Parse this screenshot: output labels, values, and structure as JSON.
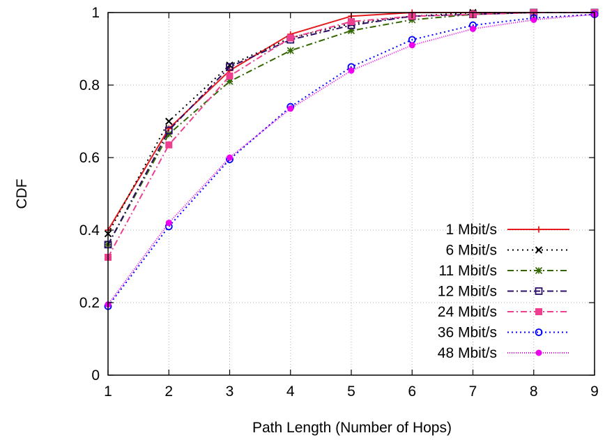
{
  "chart_data": {
    "type": "line",
    "title": "",
    "xlabel": "Path Length (Number of Hops)",
    "ylabel": "CDF",
    "xlim": [
      1,
      9
    ],
    "ylim": [
      0,
      1
    ],
    "x_ticks": [
      1,
      2,
      3,
      4,
      5,
      6,
      7,
      8,
      9
    ],
    "y_ticks": [
      0,
      0.2,
      0.4,
      0.6,
      0.8,
      1
    ],
    "y_tick_labels": [
      "0",
      "0.2",
      "0.4",
      "0.6",
      "0.8",
      "1"
    ],
    "grid": true,
    "legend_position": "bottom-right",
    "x": [
      1,
      2,
      3,
      4,
      5,
      6,
      7,
      8,
      9
    ],
    "series": [
      {
        "name": "1 Mbit/s",
        "color": "#e41a1c",
        "dash": "",
        "marker": "plus",
        "values": [
          0.4,
          0.68,
          0.84,
          0.94,
          0.99,
          1.0,
          1.0,
          1.0,
          1.0
        ]
      },
      {
        "name": "6 Mbit/s",
        "color": "#000000",
        "dash": "2,5",
        "marker": "cross",
        "values": [
          0.39,
          0.7,
          0.855,
          0.93,
          0.97,
          0.99,
          1.0,
          1.0,
          1.0
        ]
      },
      {
        "name": "11 Mbit/s",
        "color": "#336600",
        "dash": "9,4,2,4",
        "marker": "star",
        "values": [
          0.36,
          0.665,
          0.81,
          0.895,
          0.95,
          0.98,
          0.995,
          1.0,
          1.0
        ]
      },
      {
        "name": "12 Mbit/s",
        "color": "#2d0c68",
        "dash": "9,4,2,4",
        "marker": "square",
        "values": [
          0.36,
          0.675,
          0.85,
          0.925,
          0.965,
          0.99,
          0.995,
          1.0,
          1.0
        ]
      },
      {
        "name": "24 Mbit/s",
        "color": "#ee3f8f",
        "dash": "9,4,2,4",
        "marker": "filled-square",
        "values": [
          0.325,
          0.635,
          0.825,
          0.93,
          0.975,
          0.99,
          0.995,
          1.0,
          1.0
        ]
      },
      {
        "name": "36 Mbit/s",
        "color": "#0000ff",
        "dash": "2,4",
        "marker": "circle",
        "values": [
          0.19,
          0.41,
          0.595,
          0.74,
          0.85,
          0.925,
          0.965,
          0.985,
          0.995
        ]
      },
      {
        "name": "48 Mbit/s",
        "color": "#ee00ee",
        "dash": "1,2",
        "marker": "filled-circle",
        "values": [
          0.195,
          0.42,
          0.6,
          0.735,
          0.84,
          0.91,
          0.955,
          0.98,
          0.995
        ]
      }
    ]
  }
}
